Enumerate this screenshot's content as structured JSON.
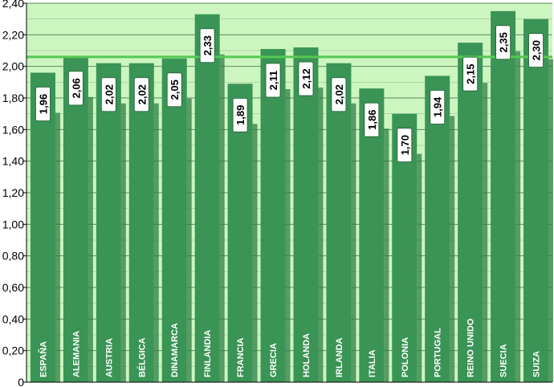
{
  "chart_data": {
    "type": "bar",
    "title": "",
    "xlabel": "",
    "ylabel": "",
    "ylim": [
      0,
      2.4
    ],
    "y_ticks": [
      "0",
      "0,20",
      "0,40",
      "0,60",
      "0,80",
      "1,00",
      "1,20",
      "1,40",
      "1,60",
      "1,80",
      "2,00",
      "2,20",
      "2,40"
    ],
    "categories": [
      "ESPAÑA",
      "ALEMANIA",
      "AUSTRIA",
      "BÉLGICA",
      "DINAMARCA",
      "FINLANDIA",
      "FRANCIA",
      "GRECIA",
      "HOLANDA",
      "IRLANDA",
      "ITALIA",
      "POLONIA",
      "PORTUGAL",
      "REINO UNIDO",
      "SUECIA",
      "SUIZA"
    ],
    "values": [
      1.96,
      2.06,
      2.02,
      2.02,
      2.05,
      2.33,
      1.89,
      2.11,
      2.12,
      2.02,
      1.86,
      1.7,
      1.94,
      2.15,
      2.35,
      2.3
    ],
    "value_labels": [
      "1,96",
      "2,06",
      "2,02",
      "2,02",
      "2,05",
      "2,33",
      "1,89",
      "2,11",
      "2,12",
      "2,02",
      "1,86",
      "1,70",
      "1,94",
      "2,15",
      "2,35",
      "2,30"
    ],
    "reference_line": 2.06,
    "grid": true,
    "colors": {
      "background": "#ccf5c0",
      "bar": "#3a9455",
      "bar_dark": "#2f7d46",
      "grid": "#5b8a5e",
      "reference_line": "#55c855",
      "label_box": "#ffffff"
    }
  }
}
